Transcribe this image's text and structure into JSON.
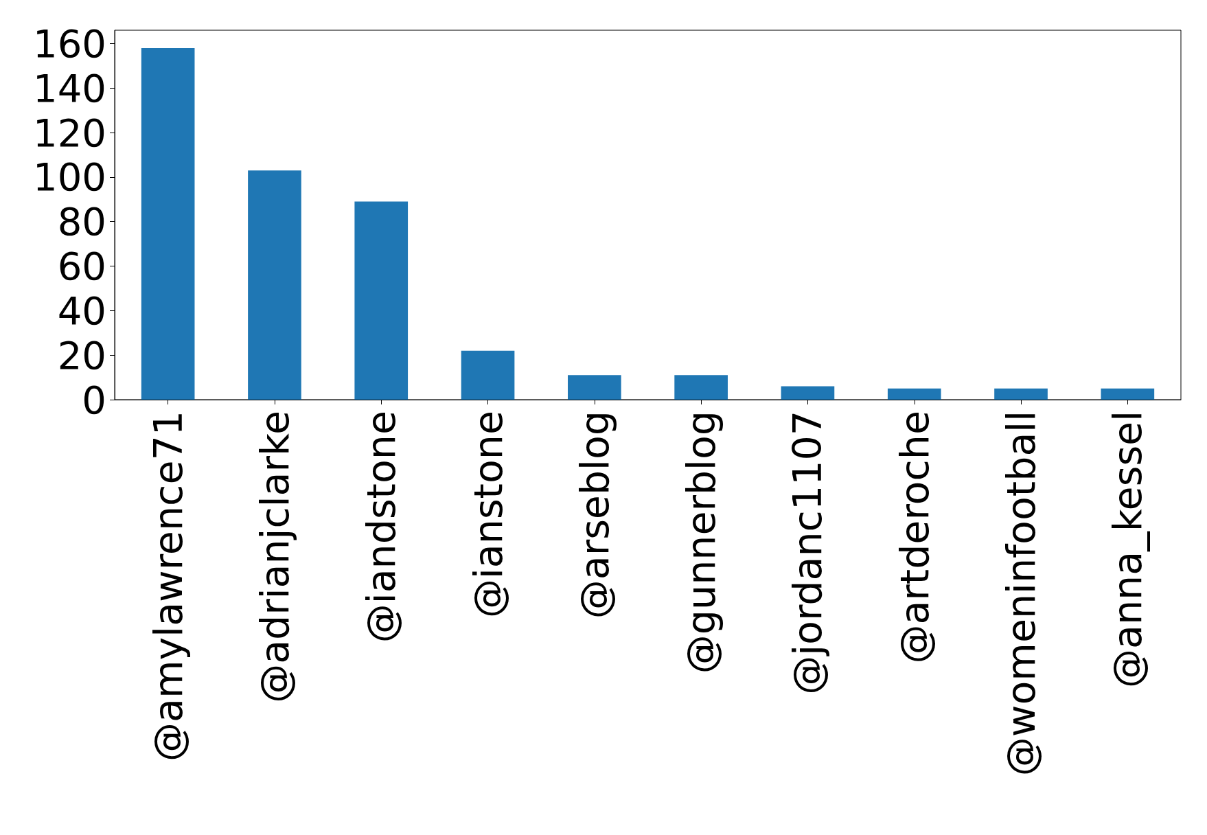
{
  "chart_data": {
    "type": "bar",
    "categories": [
      "@amylawrence71",
      "@adrianjclarke",
      "@iandstone",
      "@ianstone",
      "@arseblog",
      "@gunnerblog",
      "@jordanc1107",
      "@artderoche",
      "@womeninfootball",
      "@anna_kessel"
    ],
    "values": [
      158,
      103,
      89,
      22,
      11,
      11,
      6,
      5,
      5,
      5
    ],
    "color": "#1f77b4",
    "ylim": [
      0,
      166
    ],
    "yticks": [
      0,
      20,
      40,
      60,
      80,
      100,
      120,
      140,
      160
    ],
    "grid": false
  }
}
